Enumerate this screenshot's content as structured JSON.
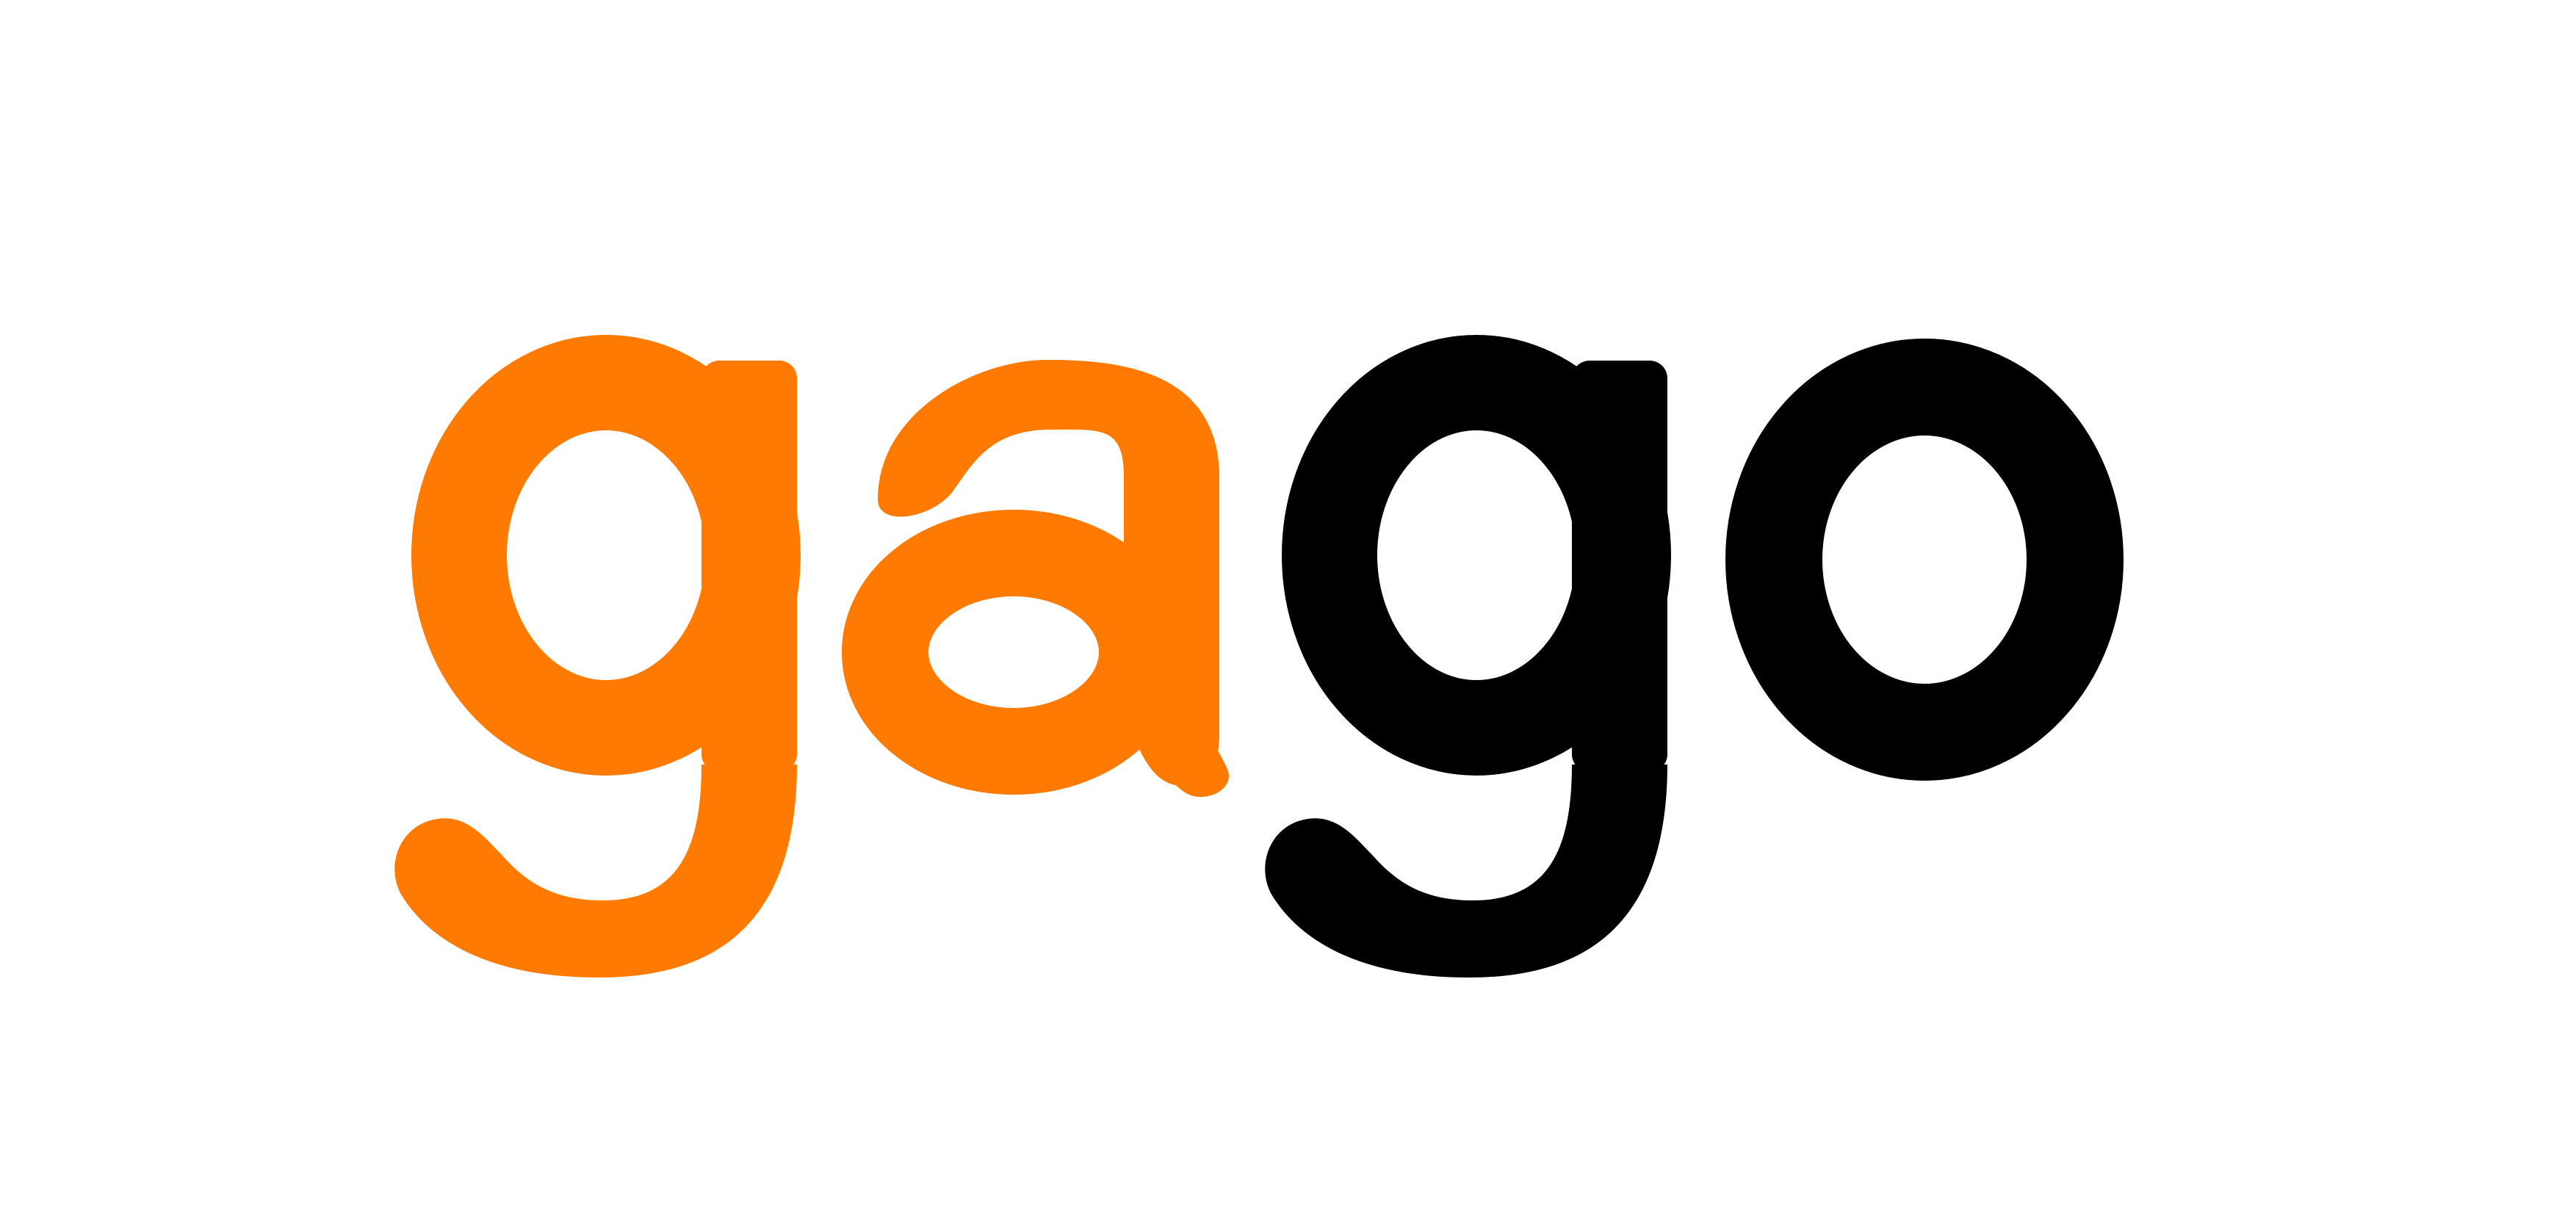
{
  "logo": {
    "wordmark": "gago",
    "parts": [
      {
        "text": "ga",
        "color": "#FF7A00"
      },
      {
        "text": "go",
        "color": "#000000"
      }
    ],
    "background": "#FFFFFF"
  }
}
